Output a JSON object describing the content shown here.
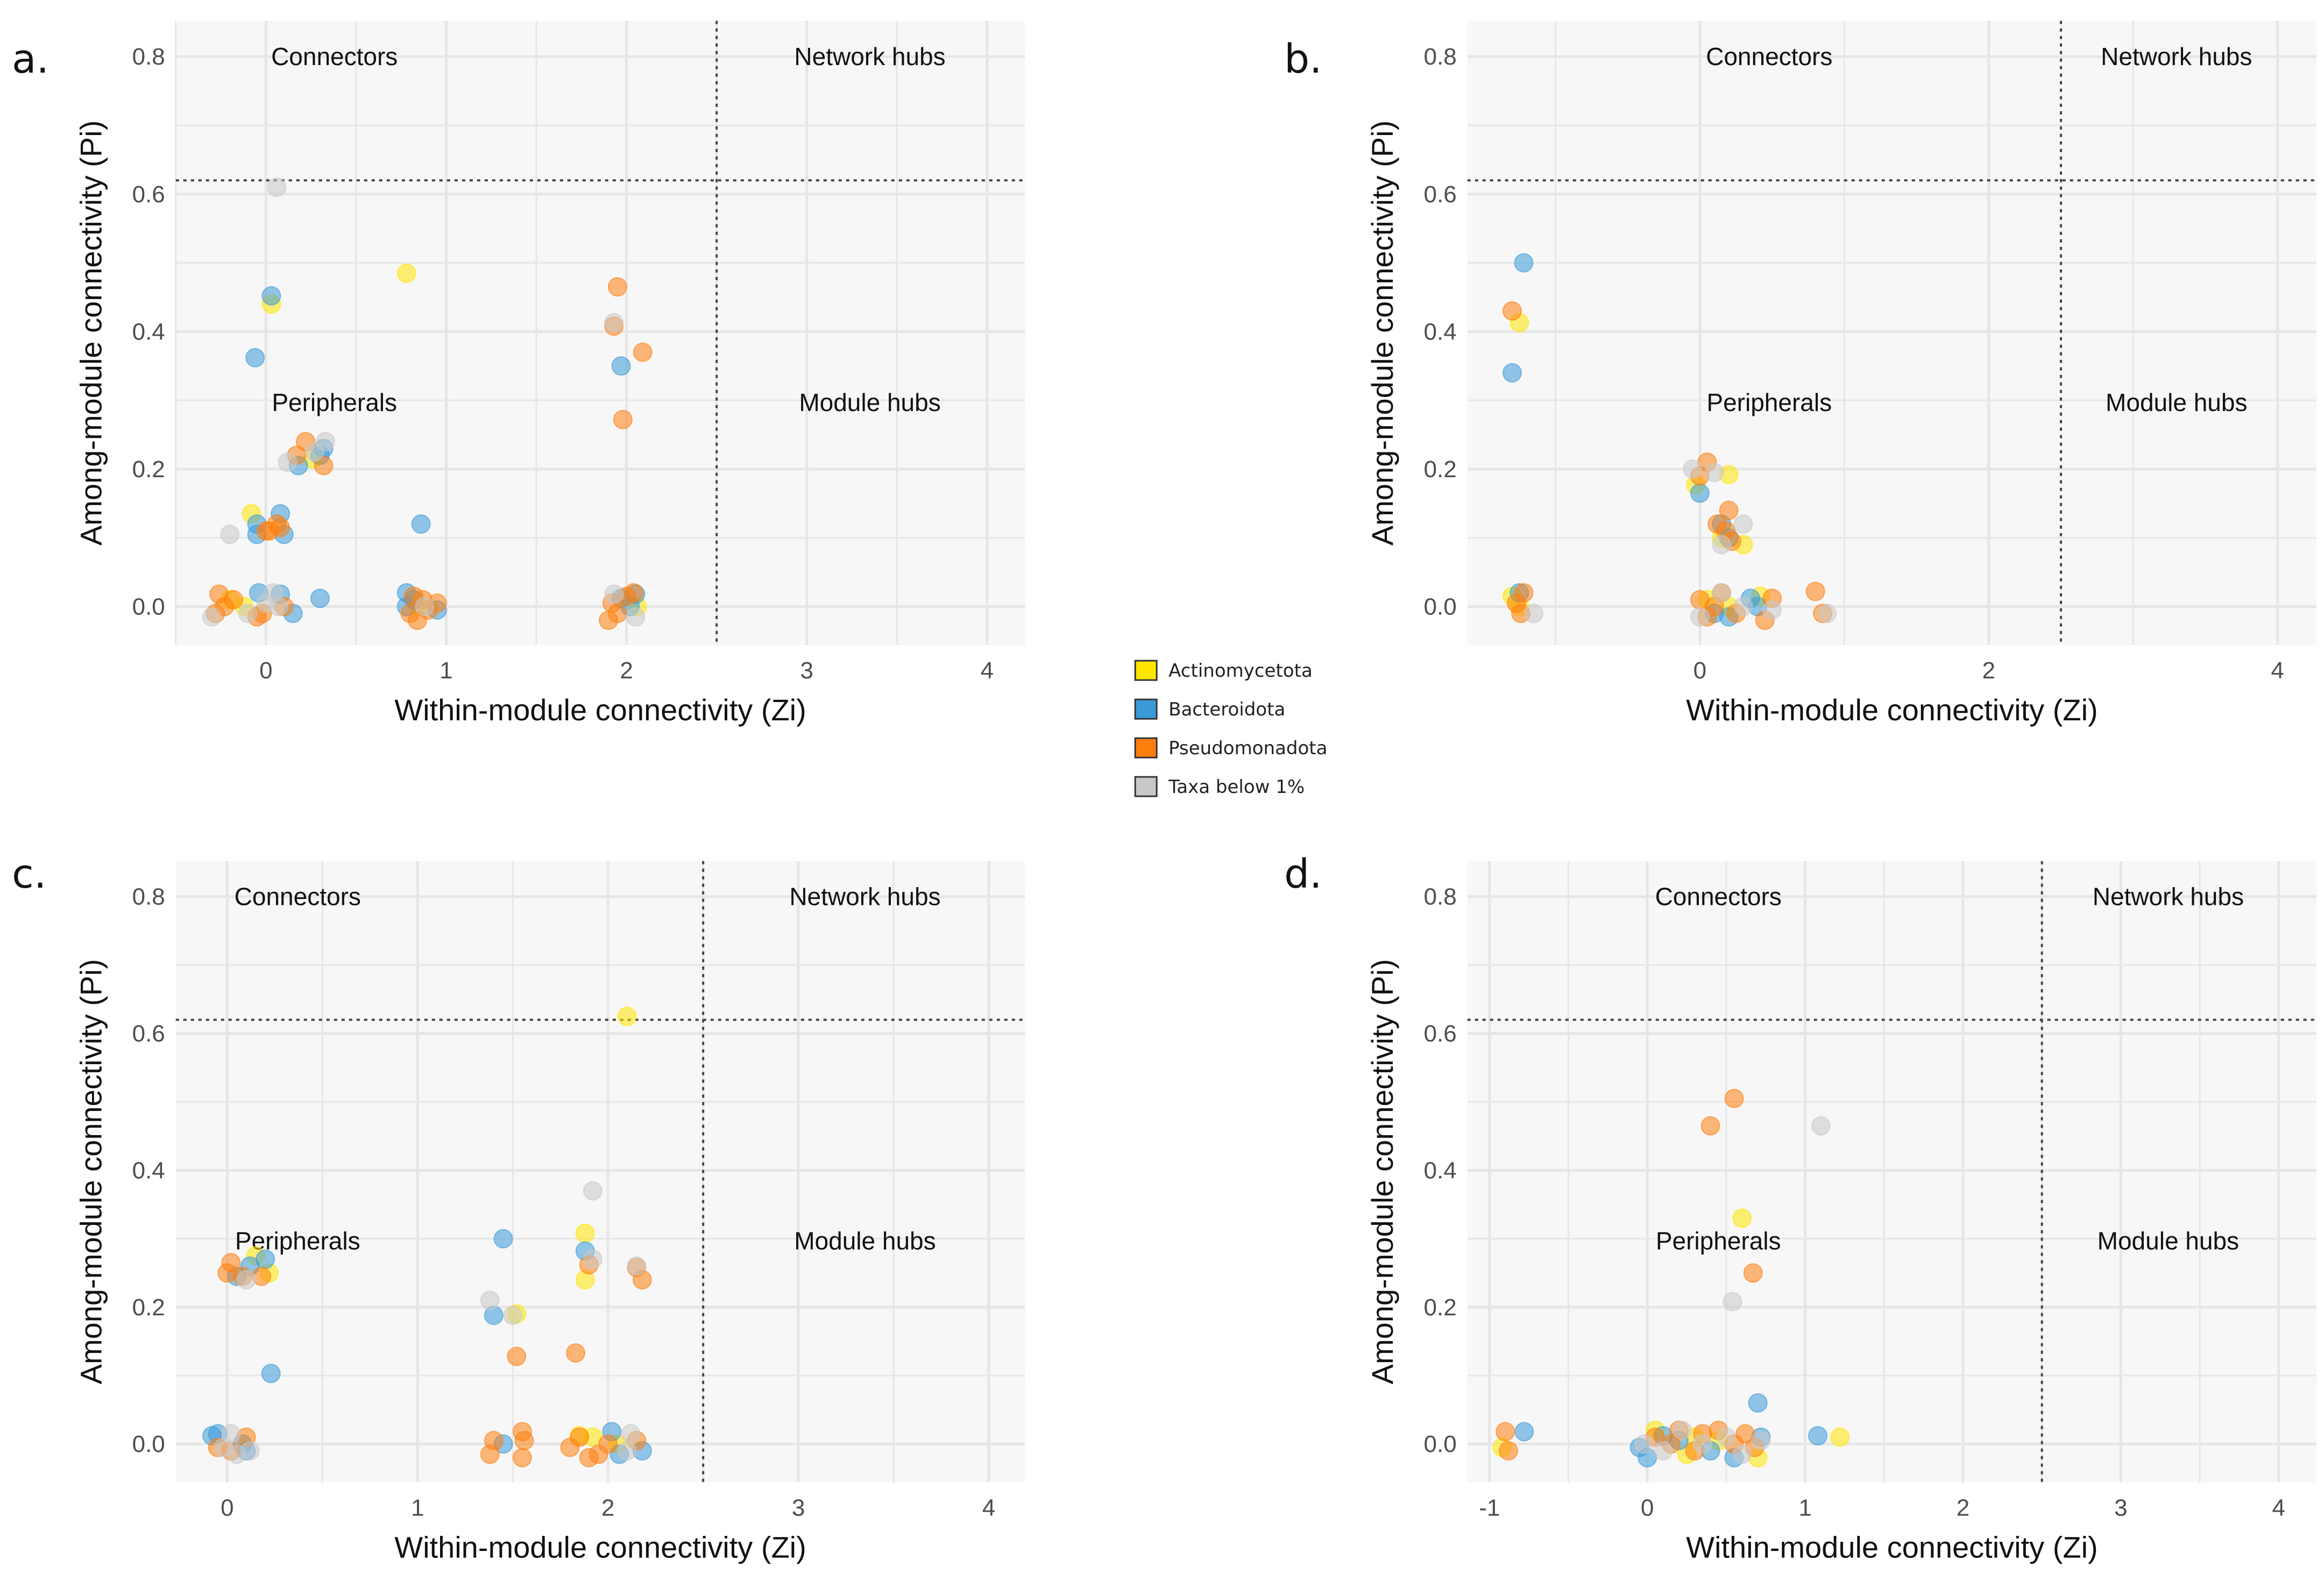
{
  "legend": {
    "items": [
      {
        "label": "Actinomycetota",
        "color": "#ffe600"
      },
      {
        "label": "Bacteroidota",
        "color": "#3a9ad9"
      },
      {
        "label": "Pseudomonadota",
        "color": "#ff7f0e"
      },
      {
        "label": "Taxa below 1%",
        "color": "#c8c8c8"
      }
    ]
  },
  "chart_data": [
    {
      "panel": "a.",
      "type": "scatter",
      "xlabel": "Within-module connectivity (Zi)",
      "ylabel": "Among-module connectivity (Pi)",
      "xlim": [
        -0.5,
        4.21
      ],
      "ylim": [
        -0.056,
        0.852
      ],
      "xticks": [
        0,
        1,
        2,
        3,
        4
      ],
      "yticks": [
        0.0,
        0.2,
        0.4,
        0.6,
        0.8
      ],
      "thresholds": {
        "zi": 2.5,
        "pi": 0.62
      },
      "quadrants": {
        "top_left": "Connectors",
        "top_right": "Network hubs",
        "bottom_left": "Peripherals",
        "bottom_right": "Module hubs"
      },
      "series": [
        {
          "name": "Actinomycetota",
          "points": [
            [
              0.78,
              0.485
            ],
            [
              0.03,
              0.44
            ],
            [
              -0.08,
              0.135
            ],
            [
              0.26,
              0.215
            ],
            [
              -0.2,
              0.01
            ],
            [
              -0.12,
              0.0
            ],
            [
              2.06,
              0.0
            ],
            [
              0.85,
              0.0
            ]
          ]
        },
        {
          "name": "Bacteroidota",
          "points": [
            [
              0.03,
              0.452
            ],
            [
              -0.06,
              0.362
            ],
            [
              0.18,
              0.205
            ],
            [
              0.3,
              0.22
            ],
            [
              0.32,
              0.23
            ],
            [
              0.08,
              0.135
            ],
            [
              -0.05,
              0.12
            ],
            [
              -0.05,
              0.105
            ],
            [
              0.1,
              0.105
            ],
            [
              0.86,
              0.12
            ],
            [
              -0.04,
              0.02
            ],
            [
              0.08,
              0.018
            ],
            [
              0.3,
              0.012
            ],
            [
              0.15,
              -0.01
            ],
            [
              0.78,
              0.02
            ],
            [
              0.82,
              0.01
            ],
            [
              0.95,
              -0.005
            ],
            [
              0.78,
              0.0
            ],
            [
              1.97,
              0.35
            ],
            [
              2.05,
              0.018
            ],
            [
              1.97,
              0.012
            ],
            [
              2.02,
              0.0
            ]
          ]
        },
        {
          "name": "Pseudomonadota",
          "points": [
            [
              0.22,
              0.24
            ],
            [
              0.17,
              0.22
            ],
            [
              0.32,
              0.205
            ],
            [
              0.02,
              0.11
            ],
            [
              0.06,
              0.12
            ],
            [
              0.08,
              0.115
            ],
            [
              0.0,
              0.11
            ],
            [
              -0.26,
              0.018
            ],
            [
              -0.23,
              0.0
            ],
            [
              -0.18,
              0.01
            ],
            [
              -0.28,
              -0.01
            ],
            [
              -0.02,
              -0.01
            ],
            [
              -0.05,
              -0.015
            ],
            [
              0.1,
              0.0
            ],
            [
              0.82,
              0.015
            ],
            [
              0.87,
              0.01
            ],
            [
              0.9,
              -0.005
            ],
            [
              0.95,
              0.005
            ],
            [
              0.8,
              -0.01
            ],
            [
              0.84,
              -0.02
            ],
            [
              1.95,
              0.465
            ],
            [
              1.93,
              0.408
            ],
            [
              2.09,
              0.37
            ],
            [
              1.98,
              0.272
            ],
            [
              1.92,
              0.005
            ],
            [
              1.95,
              -0.01
            ],
            [
              2.0,
              0.015
            ],
            [
              2.04,
              0.02
            ],
            [
              1.9,
              -0.02
            ]
          ]
        },
        {
          "name": "Taxa below 1%",
          "points": [
            [
              0.06,
              0.61
            ],
            [
              1.93,
              0.413
            ],
            [
              0.12,
              0.21
            ],
            [
              0.33,
              0.24
            ],
            [
              0.27,
              0.225
            ],
            [
              -0.2,
              0.105
            ],
            [
              0.04,
              0.02
            ],
            [
              0.0,
              0.005
            ],
            [
              -0.3,
              -0.015
            ],
            [
              -0.1,
              -0.01
            ],
            [
              0.07,
              0.0
            ],
            [
              0.88,
              0.0
            ],
            [
              1.93,
              0.018
            ],
            [
              2.05,
              -0.015
            ]
          ]
        }
      ]
    },
    {
      "panel": "b.",
      "type": "scatter",
      "xlabel": "Within-module connectivity (Zi)",
      "ylabel": "Among-module connectivity (Pi)",
      "xlim": [
        -1.61,
        4.27
      ],
      "ylim": [
        -0.056,
        0.852
      ],
      "xticks": [
        0,
        2,
        4
      ],
      "yticks": [
        0.0,
        0.2,
        0.4,
        0.6,
        0.8
      ],
      "thresholds": {
        "zi": 2.5,
        "pi": 0.62
      },
      "quadrants": {
        "top_left": "Connectors",
        "top_right": "Network hubs",
        "bottom_left": "Peripherals",
        "bottom_right": "Module hubs"
      },
      "series": [
        {
          "name": "Actinomycetota",
          "points": [
            [
              -1.25,
              0.413
            ],
            [
              -0.03,
              0.177
            ],
            [
              0.2,
              0.192
            ],
            [
              -1.3,
              0.015
            ],
            [
              -1.25,
              0.0
            ],
            [
              0.05,
              0.01
            ],
            [
              0.3,
              0.09
            ],
            [
              0.15,
              0.1
            ],
            [
              0.42,
              0.015
            ],
            [
              0.2,
              0.0
            ]
          ]
        },
        {
          "name": "Bacteroidota",
          "points": [
            [
              -1.22,
              0.5
            ],
            [
              -1.3,
              0.34
            ],
            [
              0.0,
              0.165
            ],
            [
              0.15,
              0.12
            ],
            [
              0.2,
              0.1
            ],
            [
              -1.25,
              0.02
            ],
            [
              0.35,
              0.012
            ],
            [
              0.2,
              -0.015
            ],
            [
              0.4,
              0.0
            ],
            [
              0.1,
              -0.01
            ]
          ]
        },
        {
          "name": "Pseudomonadota",
          "points": [
            [
              -1.3,
              0.43
            ],
            [
              0.05,
              0.21
            ],
            [
              0.0,
              0.19
            ],
            [
              0.2,
              0.14
            ],
            [
              0.12,
              0.12
            ],
            [
              0.18,
              0.11
            ],
            [
              0.22,
              0.095
            ],
            [
              -1.22,
              0.02
            ],
            [
              -1.27,
              0.005
            ],
            [
              -1.24,
              -0.01
            ],
            [
              0.0,
              0.01
            ],
            [
              0.1,
              0.0
            ],
            [
              0.15,
              0.02
            ],
            [
              0.25,
              -0.01
            ],
            [
              0.5,
              0.012
            ],
            [
              0.45,
              -0.02
            ],
            [
              0.8,
              0.022
            ],
            [
              0.85,
              -0.01
            ],
            [
              0.05,
              -0.015
            ]
          ]
        },
        {
          "name": "Taxa below 1%",
          "points": [
            [
              -0.05,
              0.2
            ],
            [
              0.1,
              0.195
            ],
            [
              0.3,
              0.12
            ],
            [
              0.15,
              0.09
            ],
            [
              -1.15,
              -0.01
            ],
            [
              0.0,
              -0.015
            ],
            [
              0.15,
              0.02
            ],
            [
              0.3,
              0.0
            ],
            [
              0.5,
              -0.005
            ],
            [
              0.88,
              -0.01
            ]
          ]
        }
      ]
    },
    {
      "panel": "c.",
      "type": "scatter",
      "xlabel": "Within-module connectivity (Zi)",
      "ylabel": "Among-module connectivity (Pi)",
      "xlim": [
        -0.27,
        4.19
      ],
      "ylim": [
        -0.056,
        0.852
      ],
      "xticks": [
        0,
        1,
        2,
        3,
        4
      ],
      "yticks": [
        0.0,
        0.2,
        0.4,
        0.6,
        0.8
      ],
      "thresholds": {
        "zi": 2.5,
        "pi": 0.62
      },
      "quadrants": {
        "top_left": "Connectors",
        "top_right": "Network hubs",
        "bottom_left": "Peripherals",
        "bottom_right": "Module hubs"
      },
      "series": [
        {
          "name": "Actinomycetota",
          "points": [
            [
              2.1,
              0.625
            ],
            [
              1.88,
              0.308
            ],
            [
              1.88,
              0.24
            ],
            [
              1.52,
              0.19
            ],
            [
              0.15,
              0.275
            ],
            [
              0.22,
              0.25
            ],
            [
              1.85,
              0.012
            ],
            [
              1.92,
              0.01
            ],
            [
              2.05,
              0.0
            ]
          ]
        },
        {
          "name": "Bacteroidota",
          "points": [
            [
              1.45,
              0.3
            ],
            [
              1.88,
              0.282
            ],
            [
              1.4,
              0.188
            ],
            [
              0.23,
              0.103
            ],
            [
              0.05,
              0.245
            ],
            [
              0.12,
              0.26
            ],
            [
              0.2,
              0.27
            ],
            [
              -0.08,
              0.012
            ],
            [
              -0.05,
              0.015
            ],
            [
              0.08,
              0.0
            ],
            [
              0.1,
              -0.01
            ],
            [
              1.45,
              0.0
            ],
            [
              2.02,
              0.018
            ],
            [
              2.06,
              -0.015
            ],
            [
              2.18,
              -0.01
            ]
          ]
        },
        {
          "name": "Pseudomonadota",
          "points": [
            [
              1.9,
              0.262
            ],
            [
              2.15,
              0.258
            ],
            [
              2.18,
              0.24
            ],
            [
              1.52,
              0.128
            ],
            [
              1.83,
              0.133
            ],
            [
              0.02,
              0.265
            ],
            [
              0.0,
              0.25
            ],
            [
              0.08,
              0.245
            ],
            [
              0.18,
              0.245
            ],
            [
              -0.05,
              -0.005
            ],
            [
              0.02,
              -0.01
            ],
            [
              0.1,
              0.01
            ],
            [
              1.4,
              0.005
            ],
            [
              1.38,
              -0.015
            ],
            [
              1.55,
              0.018
            ],
            [
              1.56,
              0.005
            ],
            [
              1.55,
              -0.02
            ],
            [
              1.8,
              -0.005
            ],
            [
              1.85,
              0.01
            ],
            [
              1.9,
              -0.02
            ],
            [
              1.95,
              -0.015
            ],
            [
              2.0,
              0.0
            ],
            [
              2.15,
              0.005
            ]
          ]
        },
        {
          "name": "Taxa below 1%",
          "points": [
            [
              1.92,
              0.37
            ],
            [
              1.38,
              0.21
            ],
            [
              1.5,
              0.188
            ],
            [
              1.92,
              0.27
            ],
            [
              2.15,
              0.26
            ],
            [
              0.1,
              0.24
            ],
            [
              0.02,
              0.015
            ],
            [
              -0.02,
              -0.005
            ],
            [
              0.05,
              -0.015
            ],
            [
              0.12,
              -0.01
            ],
            [
              2.12,
              0.015
            ],
            [
              2.1,
              -0.01
            ]
          ]
        }
      ]
    },
    {
      "panel": "d.",
      "type": "scatter",
      "xlabel": "Within-module connectivity (Zi)",
      "ylabel": "Among-module connectivity (Pi)",
      "xlim": [
        -1.14,
        4.24
      ],
      "ylim": [
        -0.056,
        0.852
      ],
      "xticks": [
        -1,
        0,
        1,
        2,
        3,
        4
      ],
      "yticks": [
        0.0,
        0.2,
        0.4,
        0.6,
        0.8
      ],
      "thresholds": {
        "zi": 2.5,
        "pi": 0.62
      },
      "quadrants": {
        "top_left": "Connectors",
        "top_right": "Network hubs",
        "bottom_left": "Peripherals",
        "bottom_right": "Module hubs"
      },
      "series": [
        {
          "name": "Actinomycetota",
          "points": [
            [
              0.6,
              0.33
            ],
            [
              1.22,
              0.01
            ],
            [
              -0.92,
              -0.005
            ],
            [
              0.05,
              0.02
            ],
            [
              0.25,
              -0.015
            ],
            [
              0.45,
              0.005
            ],
            [
              0.7,
              -0.02
            ],
            [
              0.3,
              0.01
            ]
          ]
        },
        {
          "name": "Bacteroidota",
          "points": [
            [
              0.7,
              0.06
            ],
            [
              -0.78,
              0.018
            ],
            [
              1.08,
              0.012
            ],
            [
              -0.05,
              -0.005
            ],
            [
              0.0,
              -0.02
            ],
            [
              0.2,
              0.005
            ],
            [
              0.4,
              -0.01
            ],
            [
              0.55,
              -0.02
            ],
            [
              0.72,
              0.01
            ],
            [
              0.1,
              0.012
            ]
          ]
        },
        {
          "name": "Pseudomonadota",
          "points": [
            [
              0.55,
              0.505
            ],
            [
              0.4,
              0.465
            ],
            [
              0.67,
              0.25
            ],
            [
              -0.9,
              0.018
            ],
            [
              -0.88,
              -0.01
            ],
            [
              0.05,
              0.01
            ],
            [
              0.15,
              0.0
            ],
            [
              0.2,
              0.02
            ],
            [
              0.35,
              0.015
            ],
            [
              0.45,
              0.02
            ],
            [
              0.55,
              0.0
            ],
            [
              0.62,
              0.015
            ],
            [
              0.68,
              -0.005
            ],
            [
              0.3,
              -0.01
            ]
          ]
        },
        {
          "name": "Taxa below 1%",
          "points": [
            [
              1.1,
              0.465
            ],
            [
              0.54,
              0.208
            ],
            [
              -0.02,
              0.0
            ],
            [
              0.1,
              -0.01
            ],
            [
              0.22,
              0.02
            ],
            [
              0.35,
              0.0
            ],
            [
              0.5,
              0.01
            ],
            [
              0.6,
              -0.015
            ],
            [
              0.72,
              0.005
            ]
          ]
        }
      ]
    }
  ]
}
